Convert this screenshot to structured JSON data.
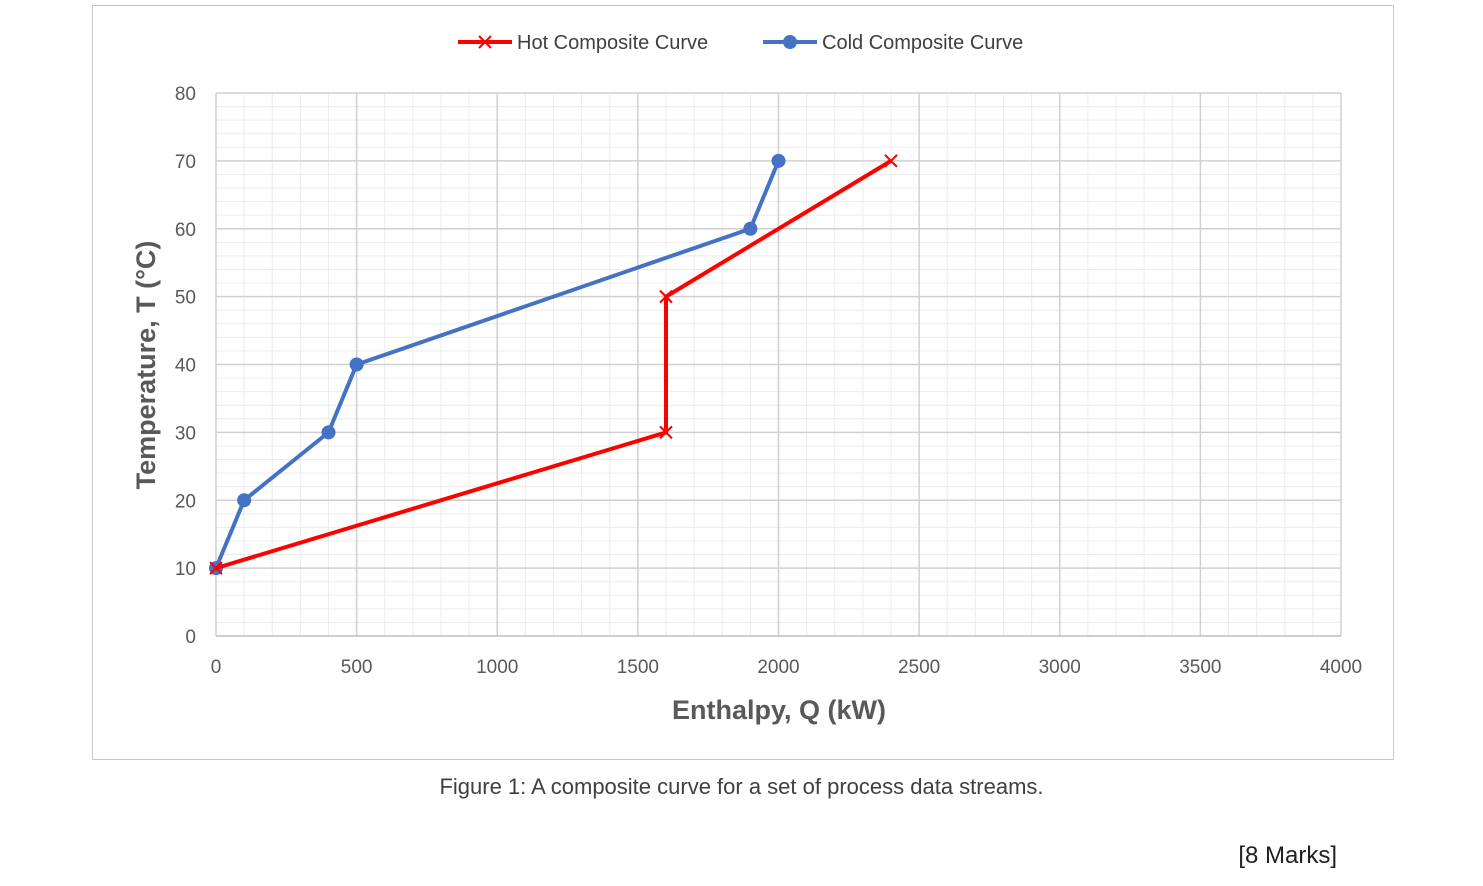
{
  "chart_data": {
    "type": "line",
    "xlabel": "Enthalpy, Q (kW)",
    "ylabel": "Temperature, T (°C)",
    "xlim": [
      0,
      4000
    ],
    "ylim": [
      0,
      80
    ],
    "x_major_step": 500,
    "y_major_step": 10,
    "x_minor_step": 100,
    "y_minor_step": 2,
    "grid": true,
    "legend_position": "top",
    "series": [
      {
        "name": "Hot Composite Curve",
        "color": "#ff0000",
        "marker": "x",
        "points": [
          [
            0,
            10
          ],
          [
            1600,
            30
          ],
          [
            1600,
            50
          ],
          [
            2400,
            70
          ]
        ]
      },
      {
        "name": "Cold Composite Curve",
        "color": "#4472c4",
        "marker": "circle",
        "points": [
          [
            0,
            10
          ],
          [
            100,
            20
          ],
          [
            400,
            30
          ],
          [
            500,
            40
          ],
          [
            1900,
            60
          ],
          [
            2000,
            70
          ]
        ]
      }
    ]
  },
  "caption": "Figure 1: A composite curve for a set of process data streams.",
  "marks": "[8 Marks]"
}
